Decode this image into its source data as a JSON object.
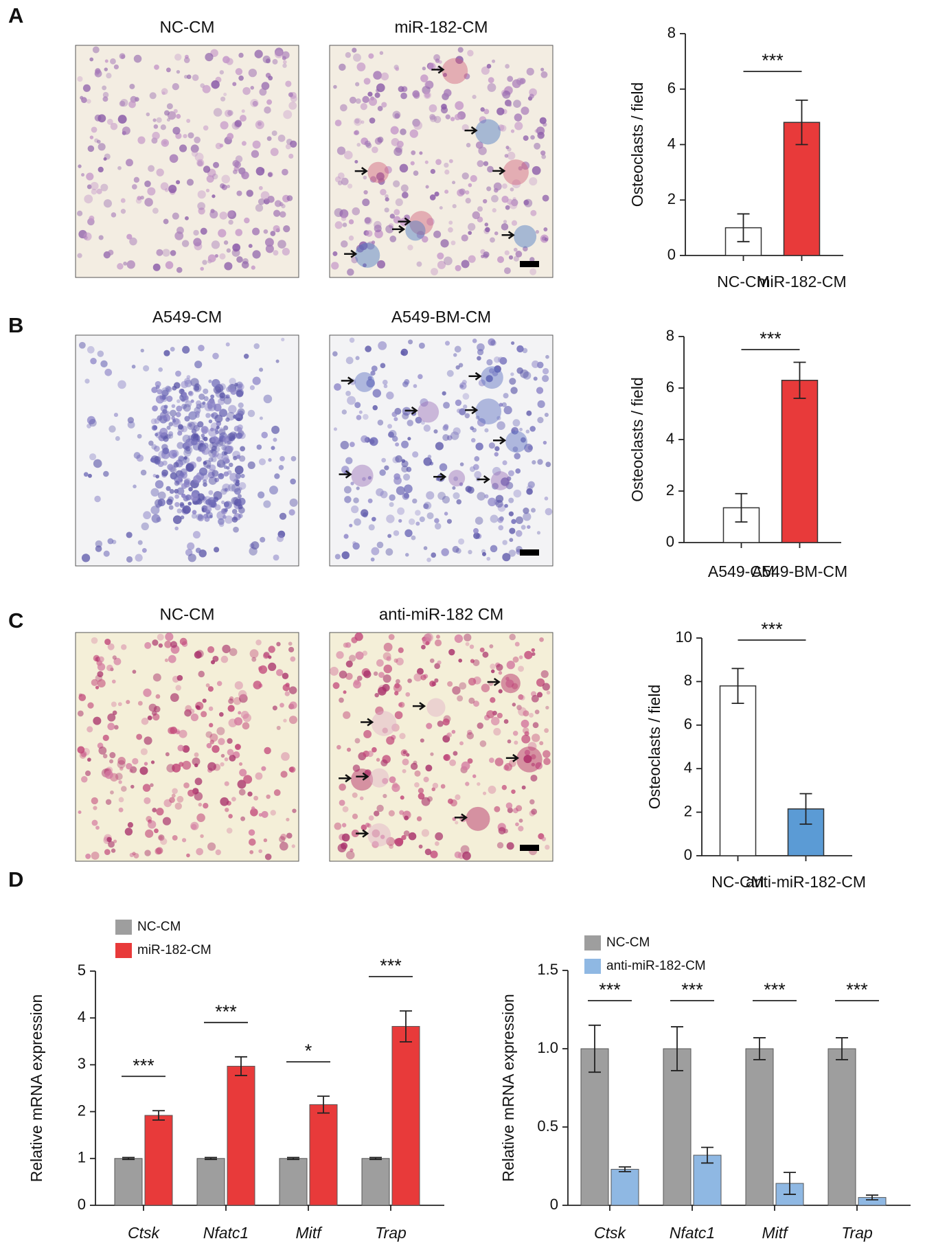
{
  "figure": {
    "panels": [
      {
        "label": "A",
        "images": [
          "NC-CM",
          "miR-182-CM"
        ]
      },
      {
        "label": "B",
        "images": [
          "A549-CM",
          "A549-BM-CM"
        ]
      },
      {
        "label": "C",
        "images": [
          "NC-CM",
          "anti-miR-182 CM"
        ]
      },
      {
        "label": "D"
      }
    ]
  },
  "chart_data": [
    {
      "type": "bar",
      "ylabel": "Osteoclasts / field",
      "categories": [
        "NC-CM",
        "miR-182-CM"
      ],
      "values": [
        1,
        4.8
      ],
      "errors": [
        0.5,
        0.8
      ],
      "colors": [
        "#ffffff",
        "#e83a3a"
      ],
      "ylim": [
        0,
        8
      ],
      "yticks": [
        0,
        2,
        4,
        6,
        8
      ],
      "significance": "***"
    },
    {
      "type": "bar",
      "ylabel": "Osteoclasts / field",
      "categories": [
        "A549-CM",
        "A549-BM-CM"
      ],
      "values": [
        1.35,
        6.3
      ],
      "errors": [
        0.55,
        0.7
      ],
      "colors": [
        "#ffffff",
        "#e83a3a"
      ],
      "ylim": [
        0,
        8
      ],
      "yticks": [
        0,
        2,
        4,
        6,
        8
      ],
      "significance": "***"
    },
    {
      "type": "bar",
      "ylabel": "Osteoclasts / field",
      "categories": [
        "NC-CM",
        "anti-miR-182-CM"
      ],
      "values": [
        7.8,
        2.15
      ],
      "errors": [
        0.8,
        0.7
      ],
      "colors": [
        "#ffffff",
        "#5b9bd5"
      ],
      "ylim": [
        0,
        10
      ],
      "yticks": [
        0,
        2,
        4,
        6,
        8,
        10
      ],
      "significance": "***"
    },
    {
      "type": "bar",
      "ylabel": "Relative mRNA expression",
      "categories": [
        "Ctsk",
        "Nfatc1",
        "Mitf",
        "Trap"
      ],
      "series": [
        {
          "name": "NC-CM",
          "color": "#9e9e9e",
          "values": [
            1,
            1,
            1,
            1
          ],
          "errors": [
            0.02,
            0.02,
            0.02,
            0.02
          ]
        },
        {
          "name": "miR-182-CM",
          "color": "#e83a3a",
          "values": [
            1.92,
            2.97,
            2.15,
            3.82
          ],
          "errors": [
            0.1,
            0.2,
            0.18,
            0.33
          ]
        }
      ],
      "ylim": [
        0,
        5
      ],
      "yticks": [
        0,
        1,
        2,
        3,
        4,
        5
      ],
      "significance": [
        "***",
        "***",
        "*",
        "***"
      ]
    },
    {
      "type": "bar",
      "ylabel": "Relative mRNA expression",
      "categories": [
        "Ctsk",
        "Nfatc1",
        "Mitf",
        "Trap"
      ],
      "series": [
        {
          "name": "NC-CM",
          "color": "#9e9e9e",
          "values": [
            1,
            1,
            1,
            1
          ],
          "errors": [
            0.15,
            0.14,
            0.07,
            0.07
          ]
        },
        {
          "name": "anti-miR-182-CM",
          "color": "#8fb8e3",
          "values": [
            0.23,
            0.32,
            0.14,
            0.05
          ],
          "errors": [
            0.015,
            0.05,
            0.07,
            0.015
          ]
        }
      ],
      "ylim": [
        0,
        1.5
      ],
      "yticks": [
        0,
        0.5,
        {
          "value": 1,
          "label": "1.0"
        },
        1.5
      ],
      "significance": [
        "***",
        "***",
        "***",
        "***"
      ]
    }
  ]
}
